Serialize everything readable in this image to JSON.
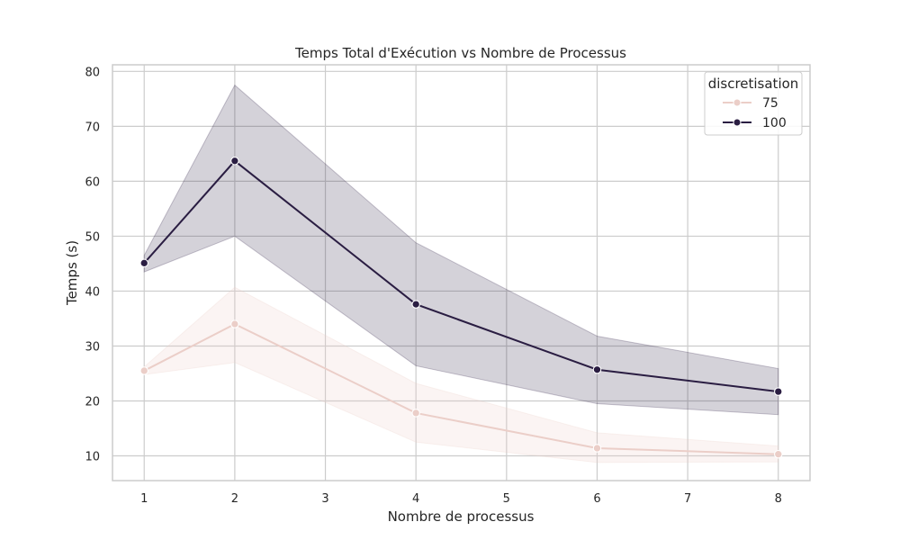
{
  "chart_data": {
    "type": "line",
    "title": "Temps Total d'Exécution vs Nombre de Processus",
    "xlabel": "Nombre de processus",
    "ylabel": "Temps (s)",
    "x_ticks": [
      1,
      2,
      3,
      4,
      5,
      6,
      7,
      8
    ],
    "y_ticks": [
      10,
      20,
      30,
      40,
      50,
      60,
      70,
      80
    ],
    "xlim": [
      0.65,
      8.35
    ],
    "ylim": [
      5.5,
      81.2
    ],
    "grid": true,
    "legend": {
      "title": "discretisation",
      "placement": "top-right"
    },
    "series": [
      {
        "name": "75",
        "color": "#ebcec8",
        "band_color": "#ebcec8",
        "x": [
          1,
          2,
          4,
          6,
          8
        ],
        "y": [
          25.5,
          34.0,
          17.8,
          11.4,
          10.3
        ],
        "ci_low": [
          24.8,
          27.0,
          12.5,
          8.8,
          8.9
        ],
        "ci_high": [
          26.2,
          40.7,
          23.2,
          14.2,
          11.8
        ]
      },
      {
        "name": "100",
        "color": "#2a1d42",
        "band_color": "#2a1d42",
        "x": [
          1,
          2,
          4,
          6,
          8
        ],
        "y": [
          45.1,
          63.7,
          37.6,
          25.7,
          21.7
        ],
        "ci_low": [
          43.5,
          50.0,
          26.4,
          19.5,
          17.5
        ],
        "ci_high": [
          46.5,
          77.5,
          48.8,
          31.8,
          25.9
        ]
      }
    ]
  }
}
